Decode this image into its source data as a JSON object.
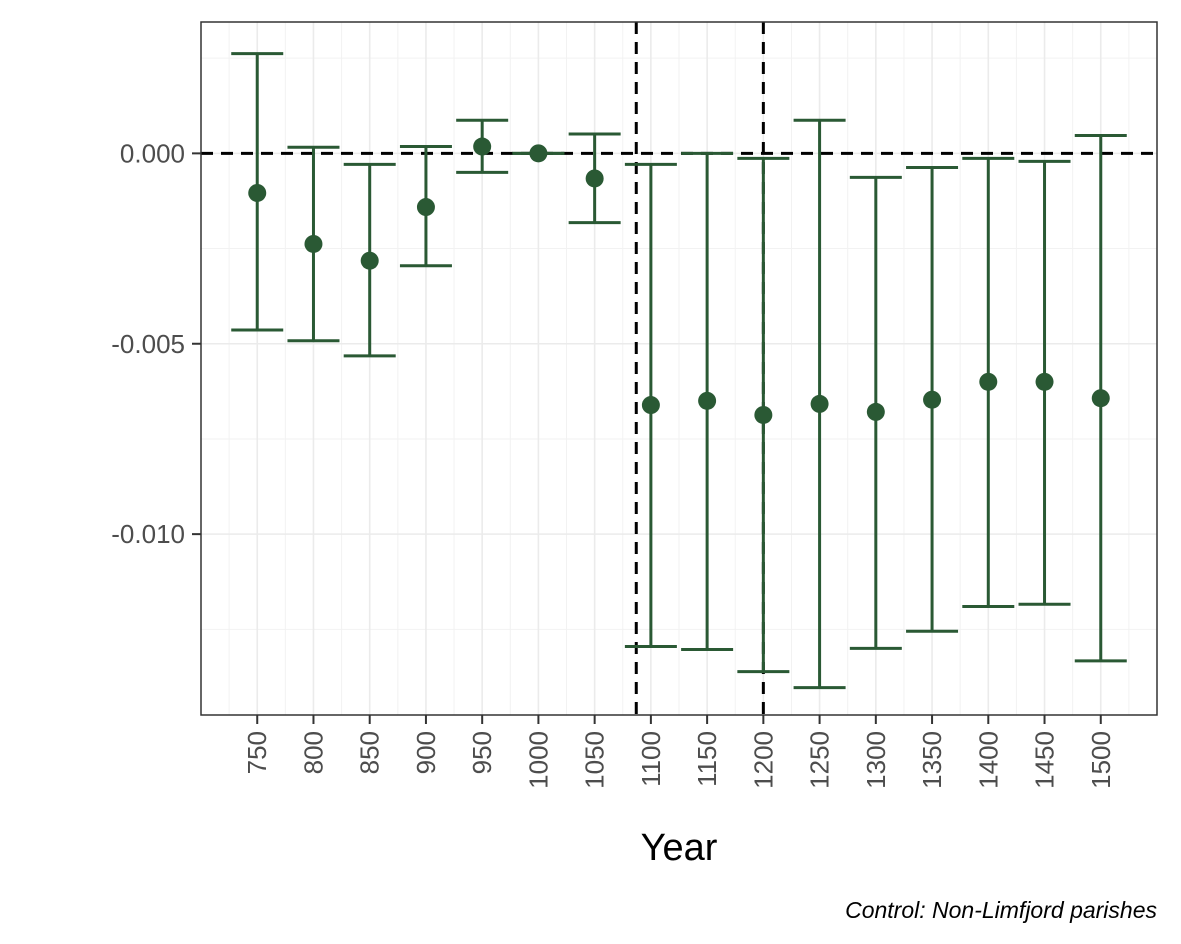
{
  "chart_data": {
    "type": "scatter",
    "subtype": "point-with-error-bars",
    "title": "",
    "xlabel": "Year",
    "ylabel": "",
    "caption": "Control: Non-Limfjord parishes",
    "x_ticks": [
      "750",
      "800",
      "850",
      "900",
      "950",
      "1000",
      "1050",
      "1100",
      "1150",
      "1200",
      "1250",
      "1300",
      "1350",
      "1400",
      "1450",
      "1500"
    ],
    "y_ticks": [
      {
        "value": 0.0,
        "label": "0.000"
      },
      {
        "value": -0.005,
        "label": "-0.005"
      },
      {
        "value": -0.01,
        "label": "-0.010"
      }
    ],
    "xlim": [
      700,
      1550
    ],
    "ylim": [
      -0.01475,
      0.00345
    ],
    "grid": true,
    "reference_lines": {
      "horizontal_dashed_at": 0.0,
      "vertical_dashed_at": [
        1087,
        1200
      ]
    },
    "series": [
      {
        "color": "#2a5934",
        "points": [
          {
            "x": 750,
            "estimate": -0.00104,
            "lower": -0.00464,
            "upper": 0.00262
          },
          {
            "x": 800,
            "estimate": -0.00238,
            "lower": -0.00492,
            "upper": 0.00016
          },
          {
            "x": 850,
            "estimate": -0.00282,
            "lower": -0.00532,
            "upper": -0.00029
          },
          {
            "x": 900,
            "estimate": -0.00141,
            "lower": -0.00295,
            "upper": 0.00018
          },
          {
            "x": 950,
            "estimate": 0.00018,
            "lower": -0.0005,
            "upper": 0.00087
          },
          {
            "x": 1000,
            "estimate": 0.0,
            "lower": 0.0,
            "upper": 0.0
          },
          {
            "x": 1050,
            "estimate": -0.00066,
            "lower": -0.00182,
            "upper": 0.00051
          },
          {
            "x": 1100,
            "estimate": -0.00661,
            "lower": -0.01295,
            "upper": -0.00029
          },
          {
            "x": 1150,
            "estimate": -0.0065,
            "lower": -0.01303,
            "upper": 0.0
          },
          {
            "x": 1200,
            "estimate": -0.00687,
            "lower": -0.01361,
            "upper": -0.00013
          },
          {
            "x": 1250,
            "estimate": -0.00658,
            "lower": -0.01403,
            "upper": 0.00087
          },
          {
            "x": 1300,
            "estimate": -0.00679,
            "lower": -0.013,
            "upper": -0.00063
          },
          {
            "x": 1350,
            "estimate": -0.00647,
            "lower": -0.01255,
            "upper": -0.00037
          },
          {
            "x": 1400,
            "estimate": -0.006,
            "lower": -0.0119,
            "upper": -0.00013
          },
          {
            "x": 1450,
            "estimate": -0.006,
            "lower": -0.01184,
            "upper": -0.00021
          },
          {
            "x": 1500,
            "estimate": -0.00643,
            "lower": -0.01333,
            "upper": 0.00047
          }
        ]
      }
    ]
  }
}
